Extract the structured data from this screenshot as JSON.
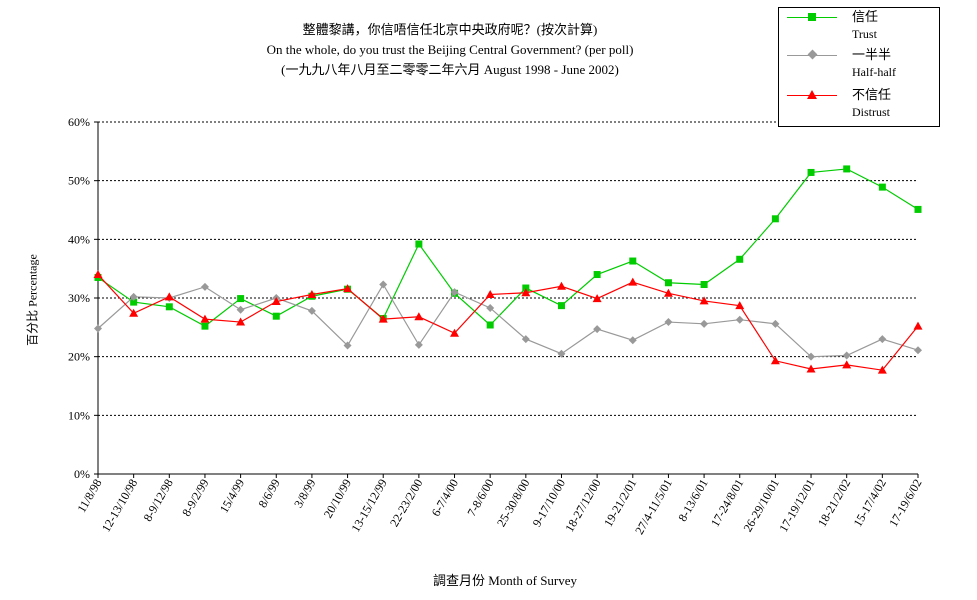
{
  "chart_data": {
    "type": "line",
    "title": "整體黎講，你信唔信任北京中央政府呢？(按次計算)",
    "subtitle": "On the whole, do you trust the Beijing Central Government?  (per poll)",
    "subtitle2": "(一九九八年八月至二零零二年六月 August 1998 - June 2002)",
    "xlabel": "調查月份 Month of Survey",
    "ylabel": "百分比 Percentage",
    "ylim": [
      0,
      60
    ],
    "yticks": [
      "0%",
      "10%",
      "20%",
      "30%",
      "40%",
      "50%",
      "60%"
    ],
    "grid": "horizontal dashed",
    "legend_position": "top-right",
    "categories": [
      "11/8/98",
      "12-13/10/98",
      "8-9/12/98",
      "8-9/2/99",
      "15/4/99",
      "8/6/99",
      "3/8/99",
      "20/10/99",
      "13-15/12/99",
      "22-23/2/00",
      "6-7/4/00",
      "7-8/6/00",
      "25-30/8/00",
      "9-17/10/00",
      "18-27/12/00",
      "19-21/2/01",
      "27/4-11/5/01",
      "8-13/6/01",
      "17-24/8/01",
      "26-29/10/01",
      "17-19/12/01",
      "18-21/2/02",
      "15-17/4/02",
      "17-19/6/02"
    ],
    "series": [
      {
        "name": "信任",
        "name_en": "Trust",
        "color": "#00cc00",
        "marker": "square",
        "values": [
          33.5,
          29.3,
          28.5,
          25.2,
          29.9,
          26.9,
          30.3,
          31.5,
          26.5,
          39.2,
          30.8,
          25.4,
          31.7,
          28.7,
          34.0,
          36.3,
          32.6,
          32.3,
          36.6,
          43.5,
          51.4,
          52.0,
          48.9,
          45.1
        ]
      },
      {
        "name": "一半半",
        "name_en": "Half-half",
        "color": "#999999",
        "marker": "diamond",
        "values": [
          24.8,
          30.2,
          30.0,
          31.9,
          28.0,
          30.0,
          27.8,
          21.9,
          32.3,
          22.0,
          31.0,
          28.3,
          23.0,
          20.5,
          24.7,
          22.8,
          25.9,
          25.6,
          26.3,
          25.6,
          20.0,
          20.2,
          23.0,
          21.1
        ]
      },
      {
        "name": "不信任",
        "name_en": "Distrust",
        "color": "#ff0000",
        "marker": "triangle",
        "values": [
          34.0,
          27.4,
          30.2,
          26.4,
          25.9,
          29.4,
          30.6,
          31.6,
          26.4,
          26.8,
          24.0,
          30.6,
          30.9,
          32.0,
          29.9,
          32.7,
          30.8,
          29.5,
          28.7,
          19.3,
          17.9,
          18.6,
          17.7,
          25.2
        ]
      }
    ]
  }
}
